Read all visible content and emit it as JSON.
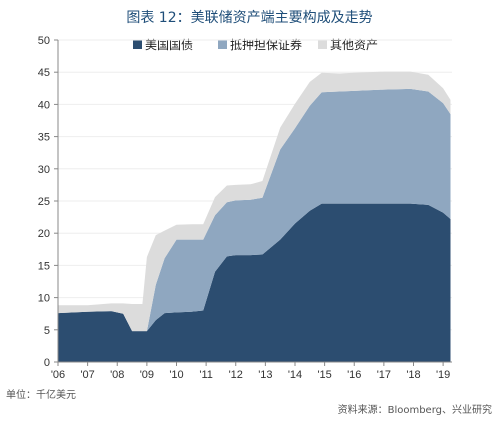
{
  "chart_data": {
    "type": "area",
    "stacked": true,
    "title": "图表 12：美联储资产端主要构成及走势",
    "unit_note": "单位：千亿美元",
    "source_note": "资料来源：Bloomberg、兴业研究",
    "ylim": [
      0,
      50
    ],
    "yticks": [
      0,
      5,
      10,
      15,
      20,
      25,
      30,
      35,
      40,
      45,
      50
    ],
    "xlim": [
      2006.0,
      2019.3
    ],
    "xticks": [
      {
        "x": 2006,
        "label": "'06"
      },
      {
        "x": 2007,
        "label": "'07"
      },
      {
        "x": 2008,
        "label": "'08"
      },
      {
        "x": 2009,
        "label": "'09"
      },
      {
        "x": 2010,
        "label": "'10"
      },
      {
        "x": 2011,
        "label": "'11"
      },
      {
        "x": 2012,
        "label": "'12"
      },
      {
        "x": 2013,
        "label": "'13"
      },
      {
        "x": 2014,
        "label": "'14"
      },
      {
        "x": 2015,
        "label": "'15"
      },
      {
        "x": 2016,
        "label": "'16"
      },
      {
        "x": 2017,
        "label": "'17"
      },
      {
        "x": 2018,
        "label": "'18"
      },
      {
        "x": 2019,
        "label": "'19"
      }
    ],
    "x": [
      2006.0,
      2007.0,
      2007.8,
      2008.2,
      2008.5,
      2008.85,
      2009.0,
      2009.3,
      2009.6,
      2010.0,
      2010.5,
      2010.9,
      2011.3,
      2011.7,
      2012.0,
      2012.5,
      2012.9,
      2013.5,
      2014.0,
      2014.5,
      2014.9,
      2015.5,
      2016.0,
      2017.0,
      2017.9,
      2018.5,
      2019.0,
      2019.25
    ],
    "series": [
      {
        "name": "美国国债",
        "color": "#2c4d70",
        "values": [
          7.6,
          7.8,
          7.9,
          7.5,
          4.8,
          4.8,
          4.8,
          6.5,
          7.6,
          7.7,
          7.8,
          8.0,
          14.0,
          16.4,
          16.6,
          16.6,
          16.7,
          19.0,
          21.5,
          23.5,
          24.6,
          24.6,
          24.6,
          24.6,
          24.6,
          24.4,
          23.2,
          22.2
        ]
      },
      {
        "name": "抵押担保证券",
        "color": "#8fa7c0",
        "values": [
          0,
          0,
          0,
          0,
          0,
          0,
          0,
          5.5,
          8.5,
          11.3,
          11.2,
          11.0,
          8.8,
          8.4,
          8.5,
          8.6,
          8.8,
          14.0,
          14.8,
          16.3,
          17.3,
          17.4,
          17.5,
          17.7,
          17.8,
          17.6,
          17.0,
          16.3
        ]
      },
      {
        "name": "其他资产",
        "color": "#dcdcdc",
        "values": [
          1.2,
          1.0,
          1.2,
          1.6,
          4.2,
          4.2,
          11.5,
          7.7,
          4.3,
          2.3,
          2.4,
          2.4,
          2.8,
          2.6,
          2.4,
          2.4,
          2.6,
          3.4,
          3.8,
          3.7,
          3.0,
          2.8,
          2.8,
          2.8,
          2.7,
          2.6,
          2.3,
          2.2
        ]
      }
    ]
  }
}
